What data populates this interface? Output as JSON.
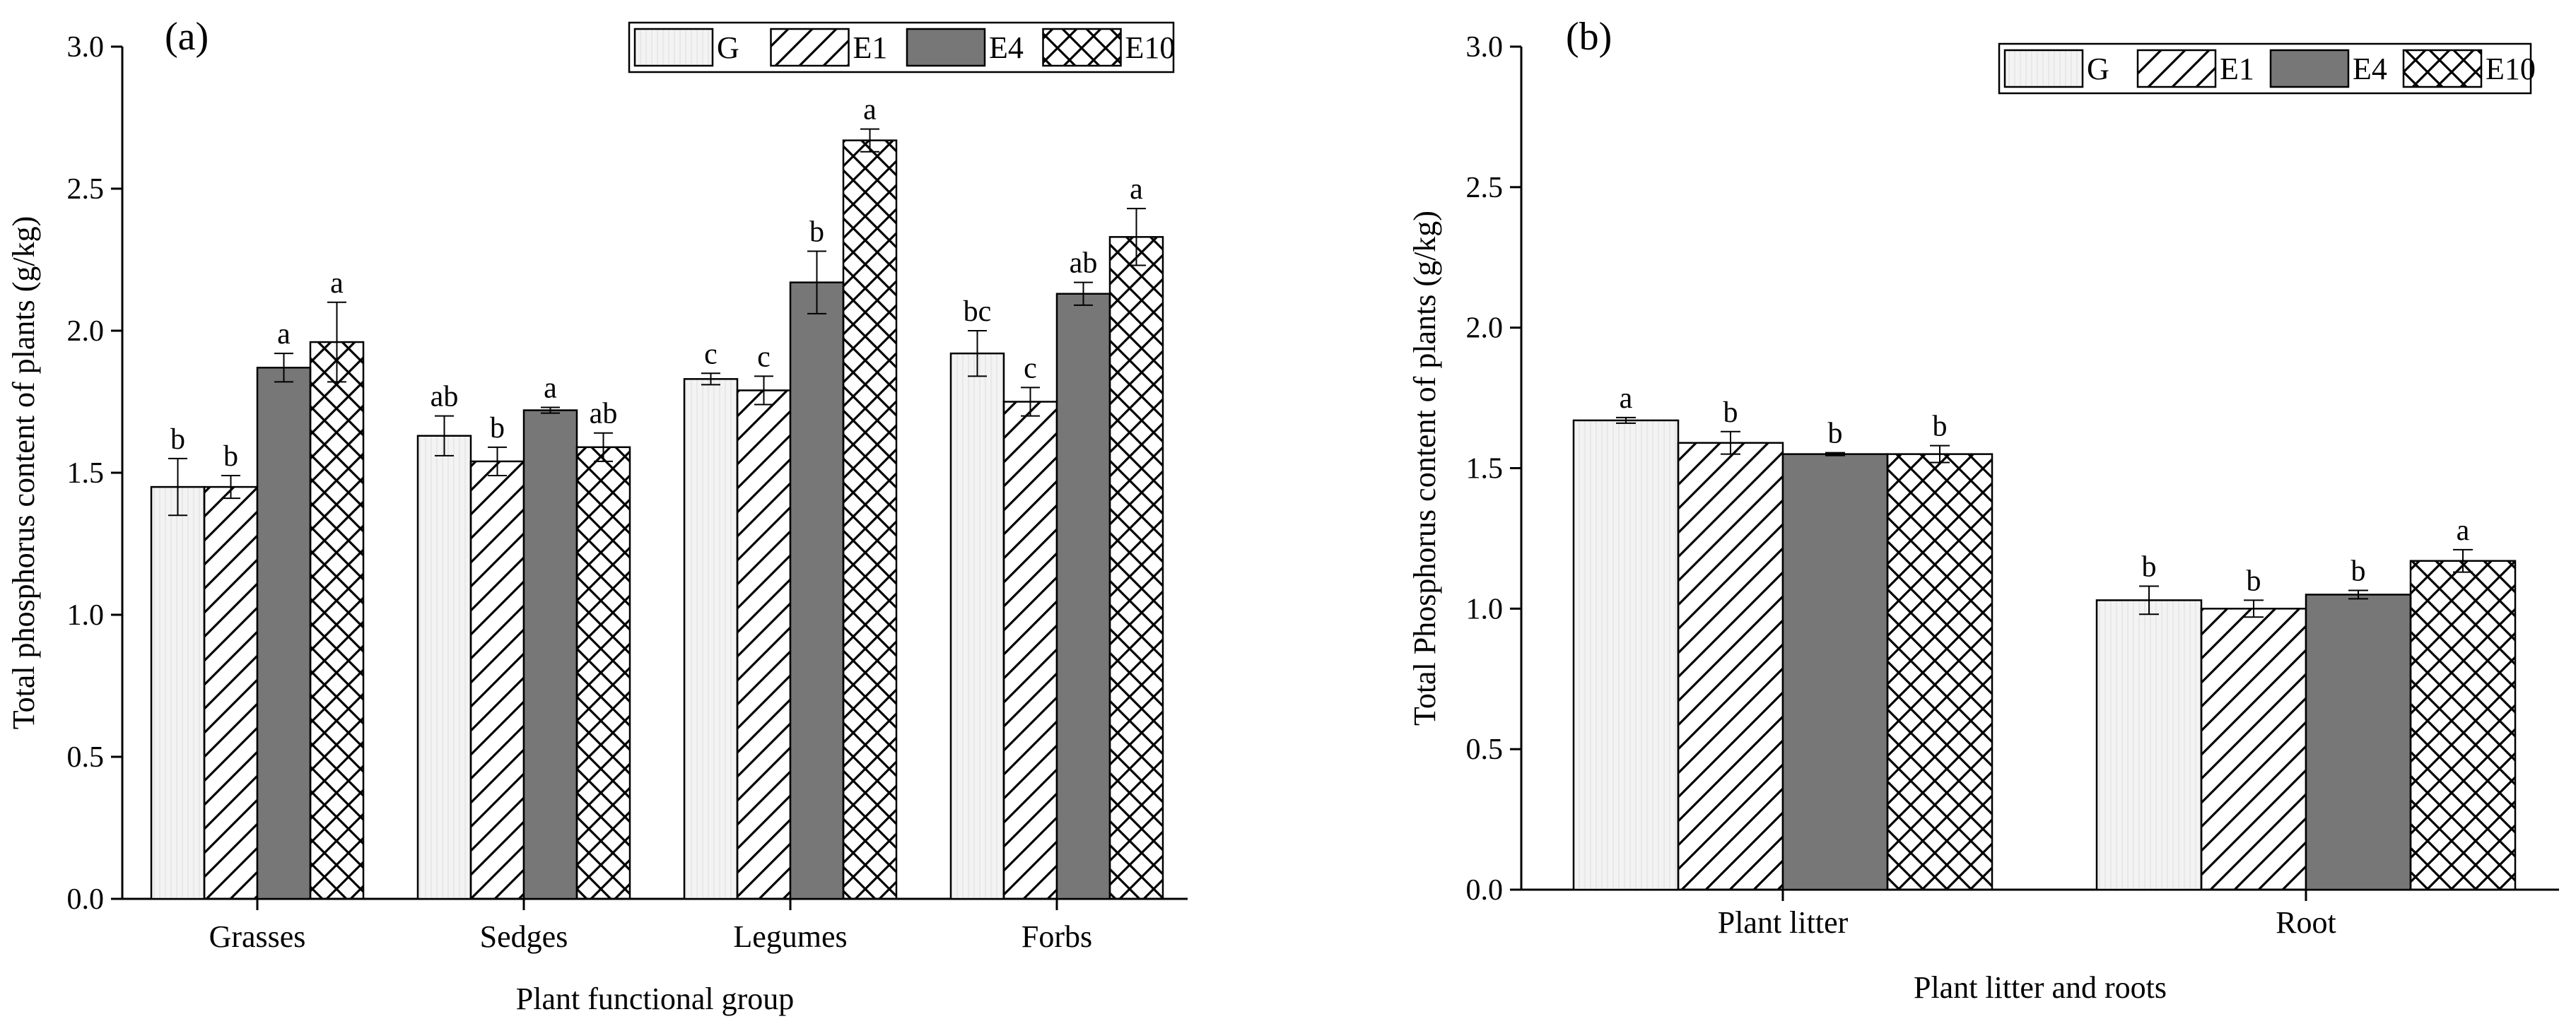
{
  "colors": {
    "G": "#f3f3f3",
    "E1": "#ffffff",
    "E4": "#777777",
    "E10": "#ffffff",
    "axis": "#000000"
  },
  "legend_entries": [
    "G",
    "E1",
    "E4",
    "E10"
  ],
  "chart_data": [
    {
      "panel": "(a)",
      "type": "bar",
      "title": "",
      "xlabel": "Plant functional group",
      "ylabel": "Total phosphorus content of plants (g/kg)",
      "ylim": [
        0,
        3.0
      ],
      "yticks": [
        "0.0",
        "0.5",
        "1.0",
        "1.5",
        "2.0",
        "2.5",
        "3.0"
      ],
      "legend_position": "top-right",
      "categories": [
        "Grasses",
        "Sedges",
        "Legumes",
        "Forbs"
      ],
      "series": [
        {
          "name": "G",
          "values": [
            1.45,
            1.63,
            1.83,
            1.92
          ],
          "errors": [
            0.1,
            0.07,
            0.02,
            0.08
          ],
          "labels": [
            "b",
            "ab",
            "c",
            "bc"
          ]
        },
        {
          "name": "E1",
          "values": [
            1.45,
            1.54,
            1.79,
            1.75
          ],
          "errors": [
            0.04,
            0.05,
            0.05,
            0.05
          ],
          "labels": [
            "b",
            "b",
            "c",
            "c"
          ]
        },
        {
          "name": "E4",
          "values": [
            1.87,
            1.72,
            2.17,
            2.13
          ],
          "errors": [
            0.05,
            0.01,
            0.11,
            0.04
          ],
          "labels": [
            "a",
            "a",
            "b",
            "ab"
          ]
        },
        {
          "name": "E10",
          "values": [
            1.96,
            1.59,
            2.67,
            2.33
          ],
          "errors": [
            0.14,
            0.05,
            0.04,
            0.1
          ],
          "labels": [
            "a",
            "ab",
            "a",
            "a"
          ]
        }
      ]
    },
    {
      "panel": "(b)",
      "type": "bar",
      "title": "",
      "xlabel": "Plant litter and roots",
      "ylabel": "Total Phosphorus content of plants (g/kg)",
      "ylim": [
        0,
        3.0
      ],
      "yticks": [
        "0.0",
        "0.5",
        "1.0",
        "1.5",
        "2.0",
        "2.5",
        "3.0"
      ],
      "legend_position": "top-right",
      "categories": [
        "Plant litter",
        "Root"
      ],
      "series": [
        {
          "name": "G",
          "values": [
            1.67,
            1.03
          ],
          "errors": [
            0.01,
            0.05
          ],
          "labels": [
            "a",
            "b"
          ]
        },
        {
          "name": "E1",
          "values": [
            1.59,
            1.0
          ],
          "errors": [
            0.04,
            0.03
          ],
          "labels": [
            "b",
            "b"
          ]
        },
        {
          "name": "E4",
          "values": [
            1.55,
            1.05
          ],
          "errors": [
            0.005,
            0.015
          ],
          "labels": [
            "b",
            "b"
          ]
        },
        {
          "name": "E10",
          "values": [
            1.55,
            1.17
          ],
          "errors": [
            0.03,
            0.04
          ],
          "labels": [
            "b",
            "a"
          ]
        }
      ]
    }
  ]
}
